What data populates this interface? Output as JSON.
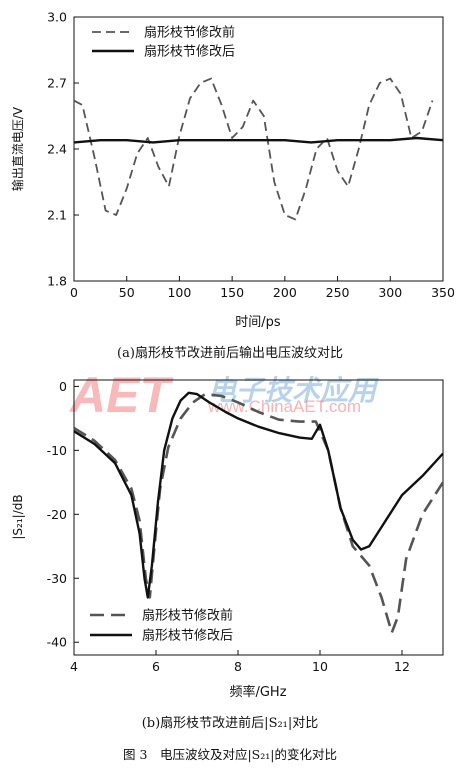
{
  "captions": {
    "a": "(a)扇形枝节改进前后输出电压波纹对比",
    "b": "(b)扇形枝节改进前后|S₂₁|对比",
    "figure": "图 3　电压波纹及对应|S₂₁|的变化对比"
  },
  "watermark": {
    "logo": "AET",
    "url": "www.ChinaAET.com",
    "chinese": "电子技术应用",
    "color": "#f08080"
  },
  "chart_data": [
    {
      "type": "line",
      "xlabel": "时间/ps",
      "ylabel": "输出直流电压/V",
      "xlim": [
        0,
        350
      ],
      "ylim": [
        1.8,
        3.0
      ],
      "xticks": [
        0,
        50,
        100,
        150,
        200,
        250,
        300,
        350
      ],
      "yticks": [
        1.8,
        2.1,
        2.4,
        2.7,
        3.0
      ],
      "ytick_labels": [
        "1.8",
        "2.1",
        "2.4",
        "2.7",
        "3.0"
      ],
      "grid": false,
      "legend_position": "top-left",
      "series": [
        {
          "name": "扇形枝节修改前",
          "style": "dashed",
          "color": "#555555",
          "x": [
            0,
            8,
            20,
            30,
            40,
            50,
            60,
            70,
            80,
            90,
            100,
            110,
            120,
            130,
            140,
            150,
            160,
            170,
            180,
            190,
            200,
            210,
            220,
            230,
            240,
            250,
            260,
            270,
            280,
            290,
            300,
            310,
            320,
            330,
            340
          ],
          "y": [
            2.62,
            2.6,
            2.35,
            2.12,
            2.1,
            2.22,
            2.38,
            2.45,
            2.32,
            2.23,
            2.46,
            2.63,
            2.7,
            2.72,
            2.6,
            2.45,
            2.5,
            2.62,
            2.55,
            2.25,
            2.1,
            2.08,
            2.22,
            2.4,
            2.45,
            2.3,
            2.23,
            2.4,
            2.6,
            2.7,
            2.72,
            2.65,
            2.45,
            2.48,
            2.62
          ]
        },
        {
          "name": "扇形枝节修改后",
          "style": "solid",
          "color": "#111111",
          "x": [
            0,
            25,
            50,
            75,
            100,
            125,
            150,
            175,
            200,
            225,
            250,
            275,
            300,
            325,
            350
          ],
          "y": [
            2.43,
            2.44,
            2.44,
            2.43,
            2.44,
            2.44,
            2.44,
            2.44,
            2.44,
            2.43,
            2.44,
            2.44,
            2.44,
            2.45,
            2.44
          ]
        }
      ]
    },
    {
      "type": "line",
      "xlabel": "频率/GHz",
      "ylabel": "|S₂₁|/dB",
      "xlim": [
        4,
        13
      ],
      "ylim": [
        -42,
        1
      ],
      "xticks": [
        4,
        6,
        8,
        10,
        12
      ],
      "yticks": [
        0,
        -10,
        -20,
        -30,
        -40
      ],
      "grid": false,
      "legend_position": "bottom-left",
      "series": [
        {
          "name": "扇形枝节修改前",
          "style": "dashed",
          "color": "#555555",
          "x": [
            4.0,
            4.5,
            5.0,
            5.4,
            5.6,
            5.75,
            5.85,
            5.95,
            6.1,
            6.3,
            6.6,
            6.9,
            7.2,
            7.6,
            8.0,
            8.5,
            9.0,
            9.5,
            9.9,
            10.2,
            10.5,
            10.8,
            11.2,
            11.5,
            11.75,
            11.9,
            12.1,
            12.5,
            13.0
          ],
          "y": [
            -6.5,
            -8.5,
            -11.5,
            -16,
            -21,
            -30,
            -33,
            -26,
            -16,
            -9.5,
            -5,
            -2.5,
            -1.2,
            -1.5,
            -2.5,
            -4,
            -5.2,
            -5.5,
            -5.5,
            -10,
            -19,
            -25,
            -28,
            -33,
            -38.5,
            -36,
            -27,
            -20,
            -15
          ]
        },
        {
          "name": "扇形枝节修改后",
          "style": "solid",
          "color": "#111111",
          "x": [
            4.0,
            4.5,
            5.0,
            5.4,
            5.6,
            5.72,
            5.8,
            5.9,
            6.05,
            6.2,
            6.4,
            6.6,
            6.8,
            7.0,
            7.3,
            7.7,
            8.0,
            8.5,
            9.0,
            9.5,
            9.8,
            10.0,
            10.2,
            10.5,
            10.8,
            11.0,
            11.2,
            11.5,
            12.0,
            12.5,
            13.0
          ],
          "y": [
            -7,
            -9,
            -12,
            -17,
            -23,
            -30,
            -33,
            -28,
            -18,
            -10,
            -5,
            -2.2,
            -1,
            -1.2,
            -2.5,
            -4,
            -5,
            -6.3,
            -7.3,
            -8,
            -8.2,
            -6,
            -10,
            -19,
            -24,
            -25.5,
            -25,
            -22,
            -17,
            -14,
            -10.5
          ]
        }
      ]
    }
  ]
}
